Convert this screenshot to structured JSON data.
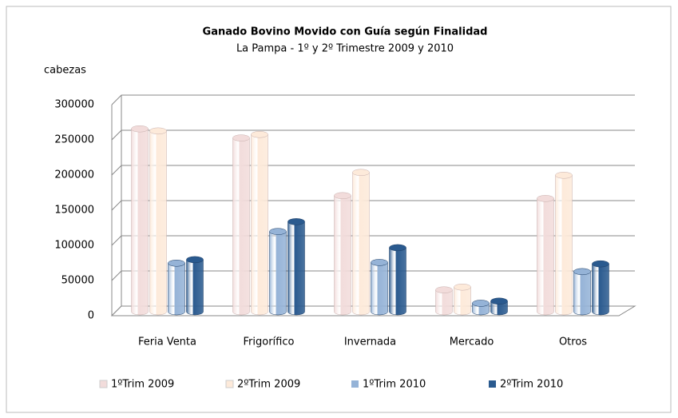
{
  "chart_data": {
    "type": "bar",
    "title": "Ganado Bovino Movido con Guía según Finalidad",
    "subtitle": "La Pampa - 1º y 2º Trimestre 2009 y 2010",
    "y_label": "cabezas",
    "categories": [
      "Feria Venta",
      "Frigorífico",
      "Invernada",
      "Mercado",
      "Otros"
    ],
    "series": [
      {
        "name": "1ºTrim 2009",
        "color": "#f2dcdb",
        "values": [
          260000,
          247000,
          165000,
          31000,
          161000
        ]
      },
      {
        "name": "2ºTrim 2009",
        "color": "#fdeada",
        "values": [
          257000,
          252000,
          198000,
          35000,
          194000
        ]
      },
      {
        "name": "1ºTrim 2010",
        "color": "#95b3d7",
        "values": [
          69000,
          114000,
          70000,
          12000,
          57000
        ]
      },
      {
        "name": "2ºTrim 2010",
        "color": "#2a5a8f",
        "values": [
          74000,
          128000,
          91000,
          15000,
          68000
        ]
      }
    ],
    "ylim": [
      0,
      300000
    ],
    "yticks": [
      0,
      50000,
      100000,
      150000,
      200000,
      250000,
      300000
    ],
    "grid": true,
    "legend": "bottom"
  }
}
